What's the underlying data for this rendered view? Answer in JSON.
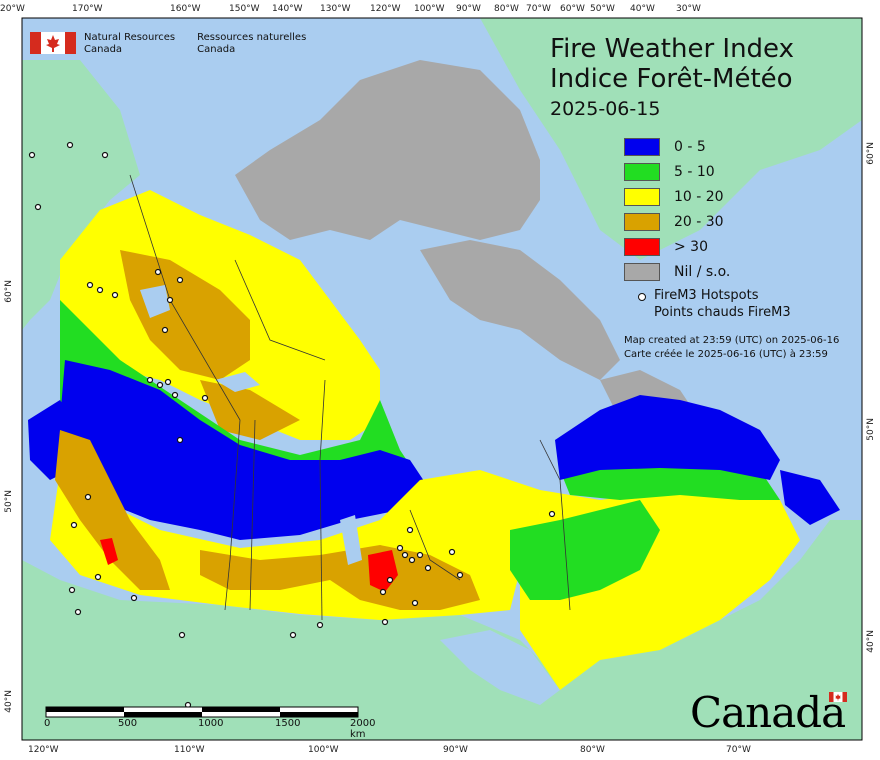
{
  "title": {
    "en": "Fire Weather Index",
    "fr": "Indice Forêt-Météo",
    "date": "2025-06-15"
  },
  "agency": {
    "en_line1": "Natural Resources",
    "en_line2": "Canada",
    "fr_line1": "Ressources naturelles",
    "fr_line2": "Canada"
  },
  "legend": [
    {
      "label": "0 - 5",
      "color": "#0000ee"
    },
    {
      "label": "5 - 10",
      "color": "#22dd22"
    },
    {
      "label": "10 - 20",
      "color": "#ffff00"
    },
    {
      "label": "20 - 30",
      "color": "#d9a200"
    },
    {
      "label": "> 30",
      "color": "#ff0000"
    },
    {
      "label": "Nil / s.o.",
      "color": "#a8a8a8"
    }
  ],
  "hotspots_legend": {
    "en": "FireM3 Hotspots",
    "fr": "Points chauds FireM3"
  },
  "credits": {
    "en": "Map created at 23:59 (UTC) on 2025-06-16",
    "fr": "Carte créée le 2025-06-16 (UTC) à 23:59"
  },
  "scalebar": {
    "labels": [
      "0",
      "500",
      "1000",
      "1500",
      "2000 km"
    ]
  },
  "wordmark": "Canada",
  "graticule": {
    "top": [
      "170°W",
      "160°W",
      "150°W",
      "140°W",
      "130°W",
      "120°W",
      "100°W",
      "90°W",
      "80°W",
      "70°W",
      "60°W",
      "50°W",
      "40°W",
      "30°W",
      "20°W"
    ],
    "bottom": [
      "120°W",
      "110°W",
      "100°W",
      "90°W",
      "80°W",
      "70°W"
    ],
    "left": [
      "60°N",
      "50°N",
      "40°N"
    ],
    "right": [
      "60°N",
      "50°N",
      "40°N"
    ]
  },
  "colors": {
    "ocean": "#aacdf0",
    "foreign_land": "#a0e0b8",
    "frame": "#000000"
  }
}
